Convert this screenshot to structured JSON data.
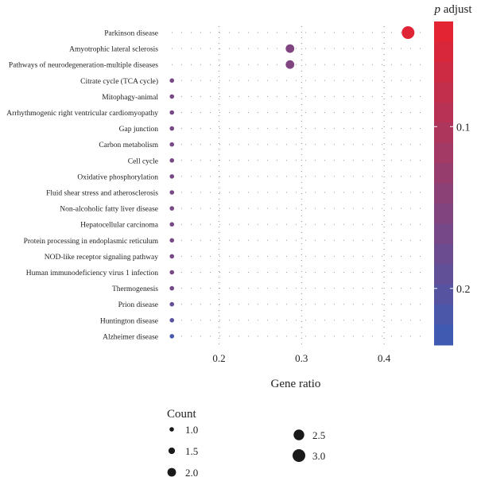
{
  "chart_data": {
    "type": "scatter",
    "xlabel": "Gene ratio",
    "ylabel": "",
    "title": "",
    "xlim": [
      0.137,
      0.447
    ],
    "xticks": [
      0.2,
      0.3,
      0.4
    ],
    "xtick_labels": [
      "0.2",
      "0.3",
      "0.4"
    ],
    "grid": true,
    "categories": [
      "Parkinson disease",
      "Amyotrophic lateral sclerosis",
      "Pathways of neurodegeneration-multiple diseases",
      "Citrate cycle (TCA cycle)",
      "Mitophagy-animal",
      "Arrhythmogenic right ventricular cardiomyopathy",
      "Gap junction",
      "Carbon metabolism",
      "Cell cycle",
      "Oxidative phosphorylation",
      "Fluid shear stress and atherosclerosis",
      "Non-alcoholic fatty liver disease",
      "Hepatocellular carcinoma",
      "Protein processing in endoplasmic reticulum",
      "NOD-like receptor signaling pathway",
      "Human immunodeficiency virus 1 infection",
      "Thermogenesis",
      "Prion disease",
      "Huntington disease",
      "Alzheimer disease"
    ],
    "points": [
      {
        "term": "Parkinson disease",
        "gene_ratio": 0.429,
        "count": 3,
        "p_adjust": 0.045
      },
      {
        "term": "Amyotrophic lateral sclerosis",
        "gene_ratio": 0.286,
        "count": 2,
        "p_adjust": 0.155
      },
      {
        "term": "Pathways of neurodegeneration-multiple diseases",
        "gene_ratio": 0.286,
        "count": 2,
        "p_adjust": 0.155
      },
      {
        "term": "Citrate cycle (TCA cycle)",
        "gene_ratio": 0.143,
        "count": 1,
        "p_adjust": 0.165
      },
      {
        "term": "Mitophagy-animal",
        "gene_ratio": 0.143,
        "count": 1,
        "p_adjust": 0.165
      },
      {
        "term": "Arrhythmogenic right ventricular cardiomyopathy",
        "gene_ratio": 0.143,
        "count": 1,
        "p_adjust": 0.165
      },
      {
        "term": "Gap junction",
        "gene_ratio": 0.143,
        "count": 1,
        "p_adjust": 0.165
      },
      {
        "term": "Carbon metabolism",
        "gene_ratio": 0.143,
        "count": 1,
        "p_adjust": 0.165
      },
      {
        "term": "Cell cycle",
        "gene_ratio": 0.143,
        "count": 1,
        "p_adjust": 0.165
      },
      {
        "term": "Oxidative phosphorylation",
        "gene_ratio": 0.143,
        "count": 1,
        "p_adjust": 0.165
      },
      {
        "term": "Fluid shear stress and atherosclerosis",
        "gene_ratio": 0.143,
        "count": 1,
        "p_adjust": 0.165
      },
      {
        "term": "Non-alcoholic fatty liver disease",
        "gene_ratio": 0.143,
        "count": 1,
        "p_adjust": 0.165
      },
      {
        "term": "Hepatocellular carcinoma",
        "gene_ratio": 0.143,
        "count": 1,
        "p_adjust": 0.165
      },
      {
        "term": "Protein processing in endoplasmic reticulum",
        "gene_ratio": 0.143,
        "count": 1,
        "p_adjust": 0.165
      },
      {
        "term": "NOD-like receptor signaling pathway",
        "gene_ratio": 0.143,
        "count": 1,
        "p_adjust": 0.165
      },
      {
        "term": "Human immunodeficiency virus 1 infection",
        "gene_ratio": 0.143,
        "count": 1,
        "p_adjust": 0.165
      },
      {
        "term": "Thermogenesis",
        "gene_ratio": 0.143,
        "count": 1,
        "p_adjust": 0.17
      },
      {
        "term": "Prion disease",
        "gene_ratio": 0.143,
        "count": 1,
        "p_adjust": 0.19
      },
      {
        "term": "Huntington disease",
        "gene_ratio": 0.143,
        "count": 1,
        "p_adjust": 0.2
      },
      {
        "term": "Alzheimer disease",
        "gene_ratio": 0.143,
        "count": 1,
        "p_adjust": 0.22
      }
    ],
    "color_legend": {
      "title_italic": "p",
      "title_rest": " adjust",
      "range": [
        0.035,
        0.235
      ],
      "ticks": [
        0.1,
        0.2
      ],
      "tick_labels": [
        "0.1",
        "0.2"
      ],
      "color_low": "#e8222e",
      "color_high": "#3b5cb6",
      "steps": 16
    },
    "size_legend": {
      "title": "Count",
      "entries": [
        {
          "value": 1.0,
          "label": "1.0"
        },
        {
          "value": 1.5,
          "label": "1.5"
        },
        {
          "value": 2.0,
          "label": "2.0"
        },
        {
          "value": 2.5,
          "label": "2.5"
        },
        {
          "value": 3.0,
          "label": "3.0"
        }
      ]
    }
  }
}
